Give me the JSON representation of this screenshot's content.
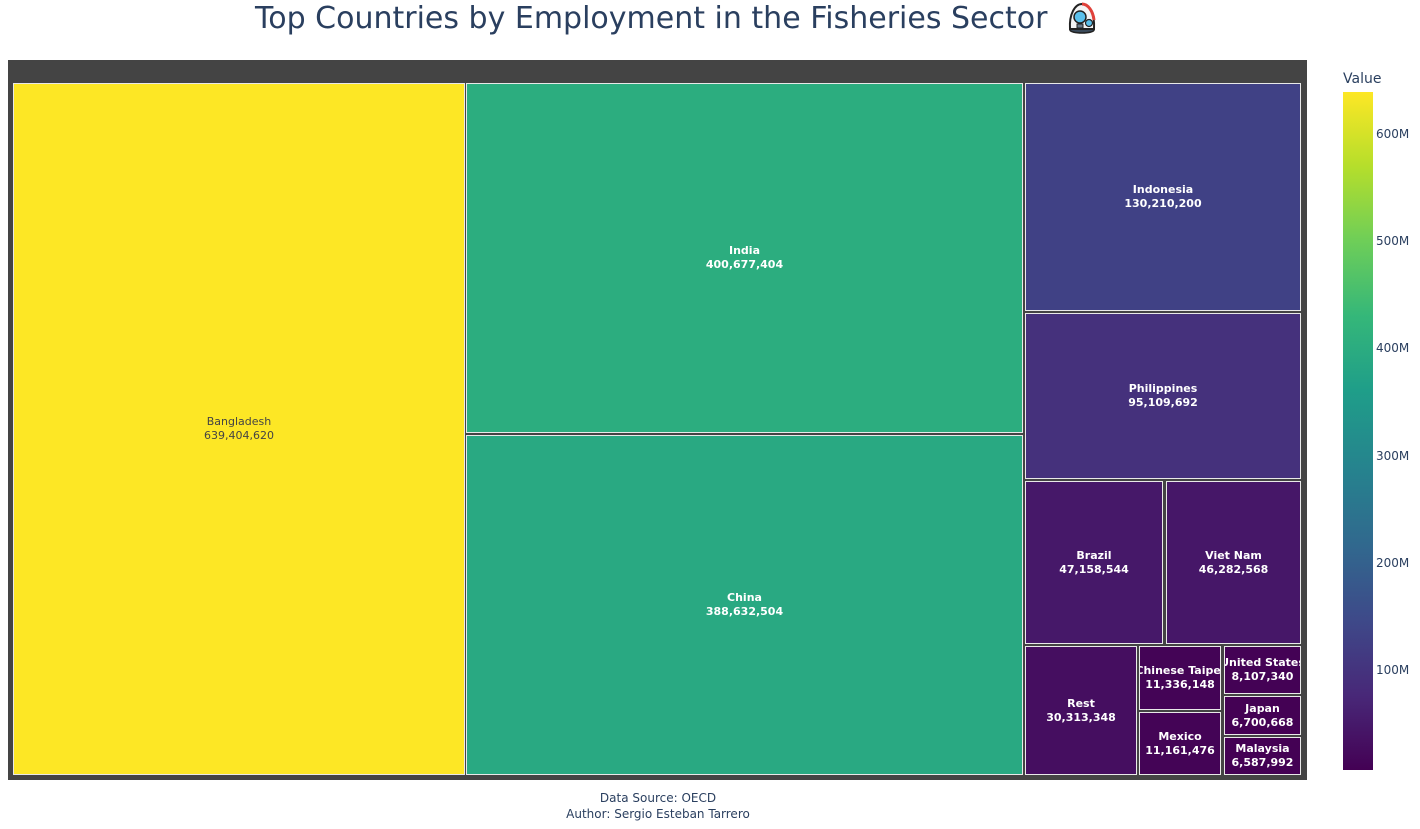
{
  "chart_data": {
    "type": "treemap",
    "title": "Top Countries by Employment in the Fisheries Sector",
    "title_icon": "diver-helmet-icon",
    "items": [
      {
        "label": "Bangladesh",
        "value": 639404620,
        "value_text": "639,404,620"
      },
      {
        "label": "India",
        "value": 400677404,
        "value_text": "400,677,404"
      },
      {
        "label": "China",
        "value": 388632504,
        "value_text": "388,632,504"
      },
      {
        "label": "Indonesia",
        "value": 130210200,
        "value_text": "130,210,200"
      },
      {
        "label": "Philippines",
        "value": 95109692,
        "value_text": "95,109,692"
      },
      {
        "label": "Brazil",
        "value": 47158544,
        "value_text": "47,158,544"
      },
      {
        "label": "Viet Nam",
        "value": 46282568,
        "value_text": "46,282,568"
      },
      {
        "label": "Rest",
        "value": 30313348,
        "value_text": "30,313,348"
      },
      {
        "label": "Chinese Taipei",
        "value": 11336148,
        "value_text": "11,336,148"
      },
      {
        "label": "Mexico",
        "value": 11161476,
        "value_text": "11,161,476"
      },
      {
        "label": "United States",
        "value": 8107340,
        "value_text": "8,107,340"
      },
      {
        "label": "Japan",
        "value": 6700668,
        "value_text": "6,700,668"
      },
      {
        "label": "Malaysia",
        "value": 6587992,
        "value_text": "6,587,992"
      }
    ],
    "colorbar": {
      "title": "Value",
      "colorscale": "Viridis",
      "range": [
        6587992,
        639404620
      ],
      "ticks": [
        {
          "value": 100000000,
          "label": "100M"
        },
        {
          "value": 200000000,
          "label": "200M"
        },
        {
          "value": 300000000,
          "label": "300M"
        },
        {
          "value": 400000000,
          "label": "400M"
        },
        {
          "value": 500000000,
          "label": "500M"
        },
        {
          "value": 600000000,
          "label": "600M"
        }
      ]
    },
    "colors": {
      "root_background": "#444444",
      "tile_border": "#e9e9e9",
      "text_light": "#ffffff",
      "text_dark": "#444444"
    }
  },
  "footer": {
    "source": "Data Source: OECD",
    "author": "Author: Sergio Esteban Tarrero"
  }
}
